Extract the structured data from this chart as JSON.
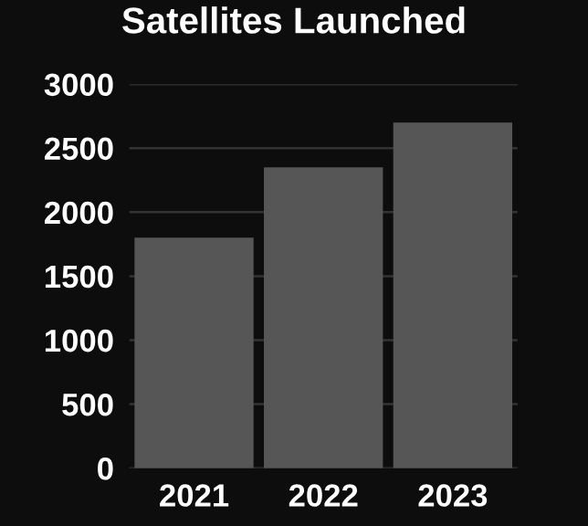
{
  "chart_data": {
    "type": "bar",
    "title": "Satellites Launched",
    "categories": [
      "2021",
      "2022",
      "2023"
    ],
    "values": [
      1800,
      2350,
      2700
    ],
    "color": "#565656",
    "ylim": [
      0,
      3000
    ],
    "yticks": [
      0,
      500,
      1000,
      1500,
      2000,
      2500,
      3000
    ],
    "grid": "y"
  }
}
